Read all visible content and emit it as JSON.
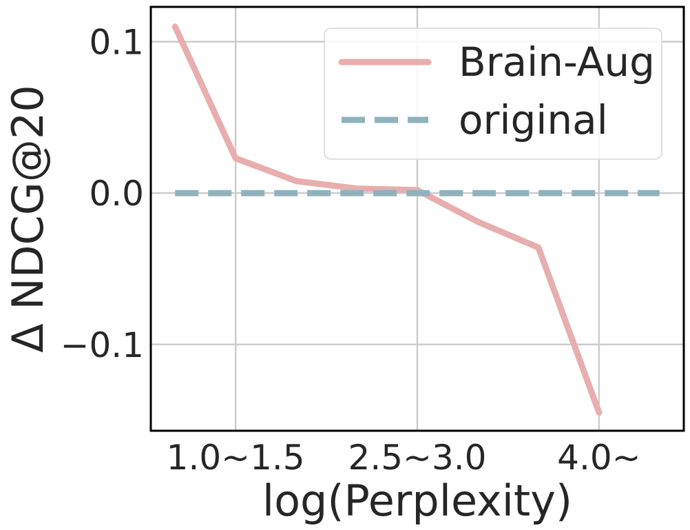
{
  "chart_data": {
    "type": "line",
    "xlabel": "log(Perplexity)",
    "ylabel": "Δ NDCG@20",
    "x_tick_labels": [
      "1.0~1.5",
      "2.5~3.0",
      "4.0~"
    ],
    "x_tick_positions": [
      1,
      4,
      7
    ],
    "y_ticks": [
      0.1,
      0.0,
      -0.1
    ],
    "y_tick_labels": [
      "0.1",
      "0.0",
      "−0.1"
    ],
    "xlim": [
      -0.4,
      8.4
    ],
    "ylim": [
      -0.157,
      0.123
    ],
    "grid": true,
    "legend_position": "upper-right",
    "series": [
      {
        "name": "Brain-Aug",
        "style": "solid",
        "color": "#e8aeae",
        "x": [
          0,
          1,
          2,
          3,
          4,
          5,
          6,
          7
        ],
        "y": [
          0.11,
          0.023,
          0.008,
          0.003,
          0.002,
          -0.019,
          -0.036,
          -0.145
        ]
      },
      {
        "name": "original",
        "style": "dashed",
        "color": "#8fb3bd",
        "x": [
          0,
          8
        ],
        "y": [
          0.0,
          0.0
        ]
      }
    ]
  }
}
